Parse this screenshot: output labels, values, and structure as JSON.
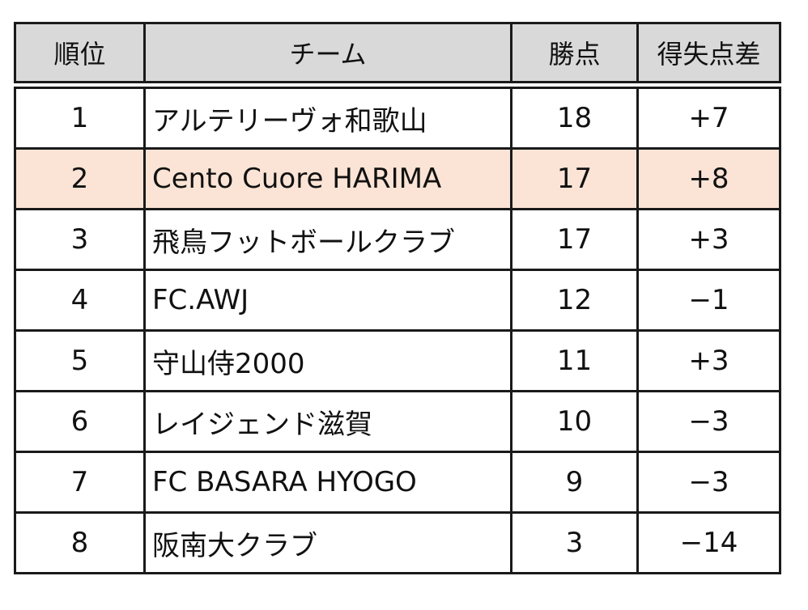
{
  "chart_data": {
    "type": "table",
    "columns": [
      "順位",
      "チーム",
      "勝点",
      "得失点差"
    ],
    "rows": [
      {
        "rank": "1",
        "team": "アルテリーヴォ和歌山",
        "points": 18,
        "goal_diff": "+7"
      },
      {
        "rank": "2",
        "team": "Cento Cuore HARIMA",
        "points": 17,
        "goal_diff": "+8"
      },
      {
        "rank": "3",
        "team": "飛鳥フットボールクラブ",
        "points": 17,
        "goal_diff": "+3"
      },
      {
        "rank": "4",
        "team": "FC.AWJ",
        "points": 12,
        "goal_diff": "−1"
      },
      {
        "rank": "5",
        "team": "守山侍2000",
        "points": 11,
        "goal_diff": "+3"
      },
      {
        "rank": "6",
        "team": "レイジェンド滋賀",
        "points": 10,
        "goal_diff": "−3"
      },
      {
        "rank": "7",
        "team": "FC BASARA HYOGO",
        "points": 9,
        "goal_diff": "−3"
      },
      {
        "rank": "8",
        "team": "阪南大クラブ",
        "points": 3,
        "goal_diff": "−14"
      }
    ],
    "highlighted_row": 1,
    "colors": {
      "header_bg": "#d9d9d9",
      "highlight_bg": "#fbe4d5",
      "border": "#1a1a1a"
    }
  }
}
